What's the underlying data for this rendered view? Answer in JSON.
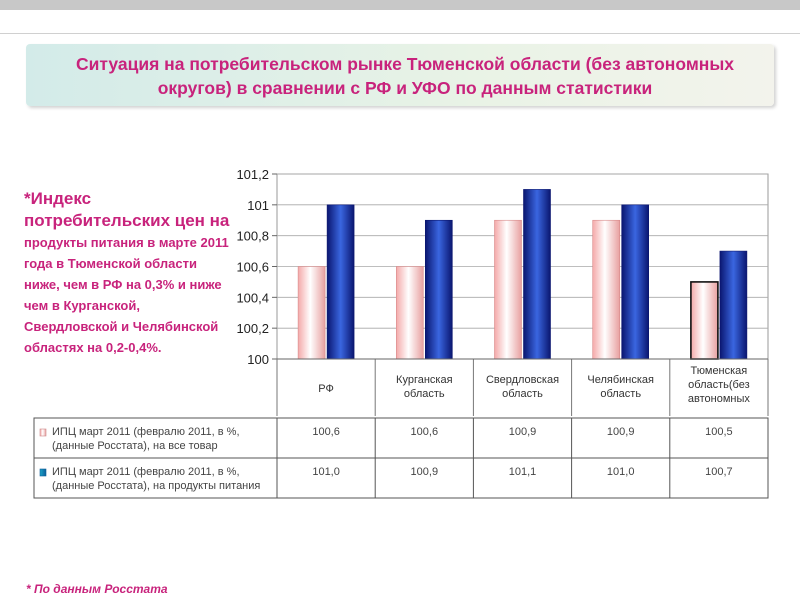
{
  "title": "Ситуация на потребительском рынке Тюменской области  (без автономных округов) в сравнении с РФ и УФО по данным статистики",
  "side_text": {
    "bold_part": "*Индекс потребительских цен на",
    "rest_part": " продукты питания в марте 2011 года в Тюменской области ниже, чем в РФ на 0,3% и ниже чем в Курганской, Свердловской и Челябинской областях на 0,2-0,4%."
  },
  "footnote": "* По данным Росстата",
  "colors": {
    "accent": "#c8237c",
    "series1": "#f2b6b6",
    "series2": "#1a2a9e"
  },
  "chart_data": {
    "type": "bar",
    "categories": [
      "РФ",
      "Курганская область",
      "Свердловская область",
      "Челябинская область",
      "Тюменская область(без автономных"
    ],
    "series": [
      {
        "name": "ИПЦ март 2011 (февралю 2011, в %, (данные Росстата), на все товар",
        "values": [
          100.6,
          100.6,
          100.9,
          100.9,
          100.5
        ],
        "labels": [
          "100,6",
          "100,6",
          "100,9",
          "100,9",
          "100,5"
        ]
      },
      {
        "name": "ИПЦ март 2011 (февралю 2011, в %, (данные Росстата), на продукты питания",
        "values": [
          101.0,
          100.9,
          101.1,
          101.0,
          100.7
        ],
        "labels": [
          "101,0",
          "100,9",
          "101,1",
          "101,0",
          "100,7"
        ]
      }
    ],
    "ylim": [
      100,
      101.2
    ],
    "yticks": [
      100,
      100.2,
      100.4,
      100.6,
      100.8,
      101,
      101.2
    ],
    "yticklabels": [
      "100",
      "100,2",
      "100,4",
      "100,6",
      "100,8",
      "101",
      "101,2"
    ],
    "grid": true,
    "legend": "data table below chart"
  }
}
